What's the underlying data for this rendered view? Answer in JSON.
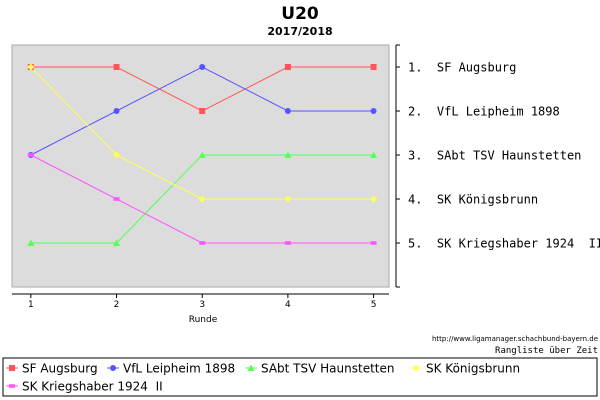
{
  "chart_data": {
    "type": "line",
    "title": "U20",
    "subtitle": "2017/2018",
    "xlabel": "Runde",
    "ylabel": "",
    "x": [
      1,
      2,
      3,
      4,
      5
    ],
    "ylim": [
      0.5,
      6.0
    ],
    "y_inverted": true,
    "grid": false,
    "plot_background": "#dcdcdc",
    "rank_labels": [
      "1.  SF Augsburg",
      "2.  VfL Leipheim 1898",
      "3.  SAbt TSV Haunstetten",
      "4.  SK Königsbrunn",
      "5.  SK Kriegshaber 1924  II"
    ],
    "series": [
      {
        "name": "SF Augsburg",
        "values": [
          1,
          1,
          2,
          1,
          1
        ],
        "color": "#ff5555",
        "marker": "square"
      },
      {
        "name": "VfL Leipheim 1898",
        "values": [
          3,
          2,
          1,
          2,
          2
        ],
        "color": "#5555ff",
        "marker": "circle"
      },
      {
        "name": "SAbt TSV Haunstetten",
        "values": [
          5,
          5,
          3,
          3,
          3
        ],
        "color": "#55ff55",
        "marker": "triangle"
      },
      {
        "name": "SK Königsbrunn",
        "values": [
          1,
          3,
          4,
          4,
          4
        ],
        "color": "#ffff55",
        "marker": "diamond"
      },
      {
        "name": "SK Kriegshaber 1924  II",
        "values": [
          3,
          4,
          5,
          5,
          5
        ],
        "color": "#ff55ff",
        "marker": "bar"
      }
    ],
    "legend_position": "bottom"
  },
  "footer": {
    "url": "http://www.ligamanager.schachbund-bayern.de",
    "caption": "Rangliste über Zeit"
  }
}
